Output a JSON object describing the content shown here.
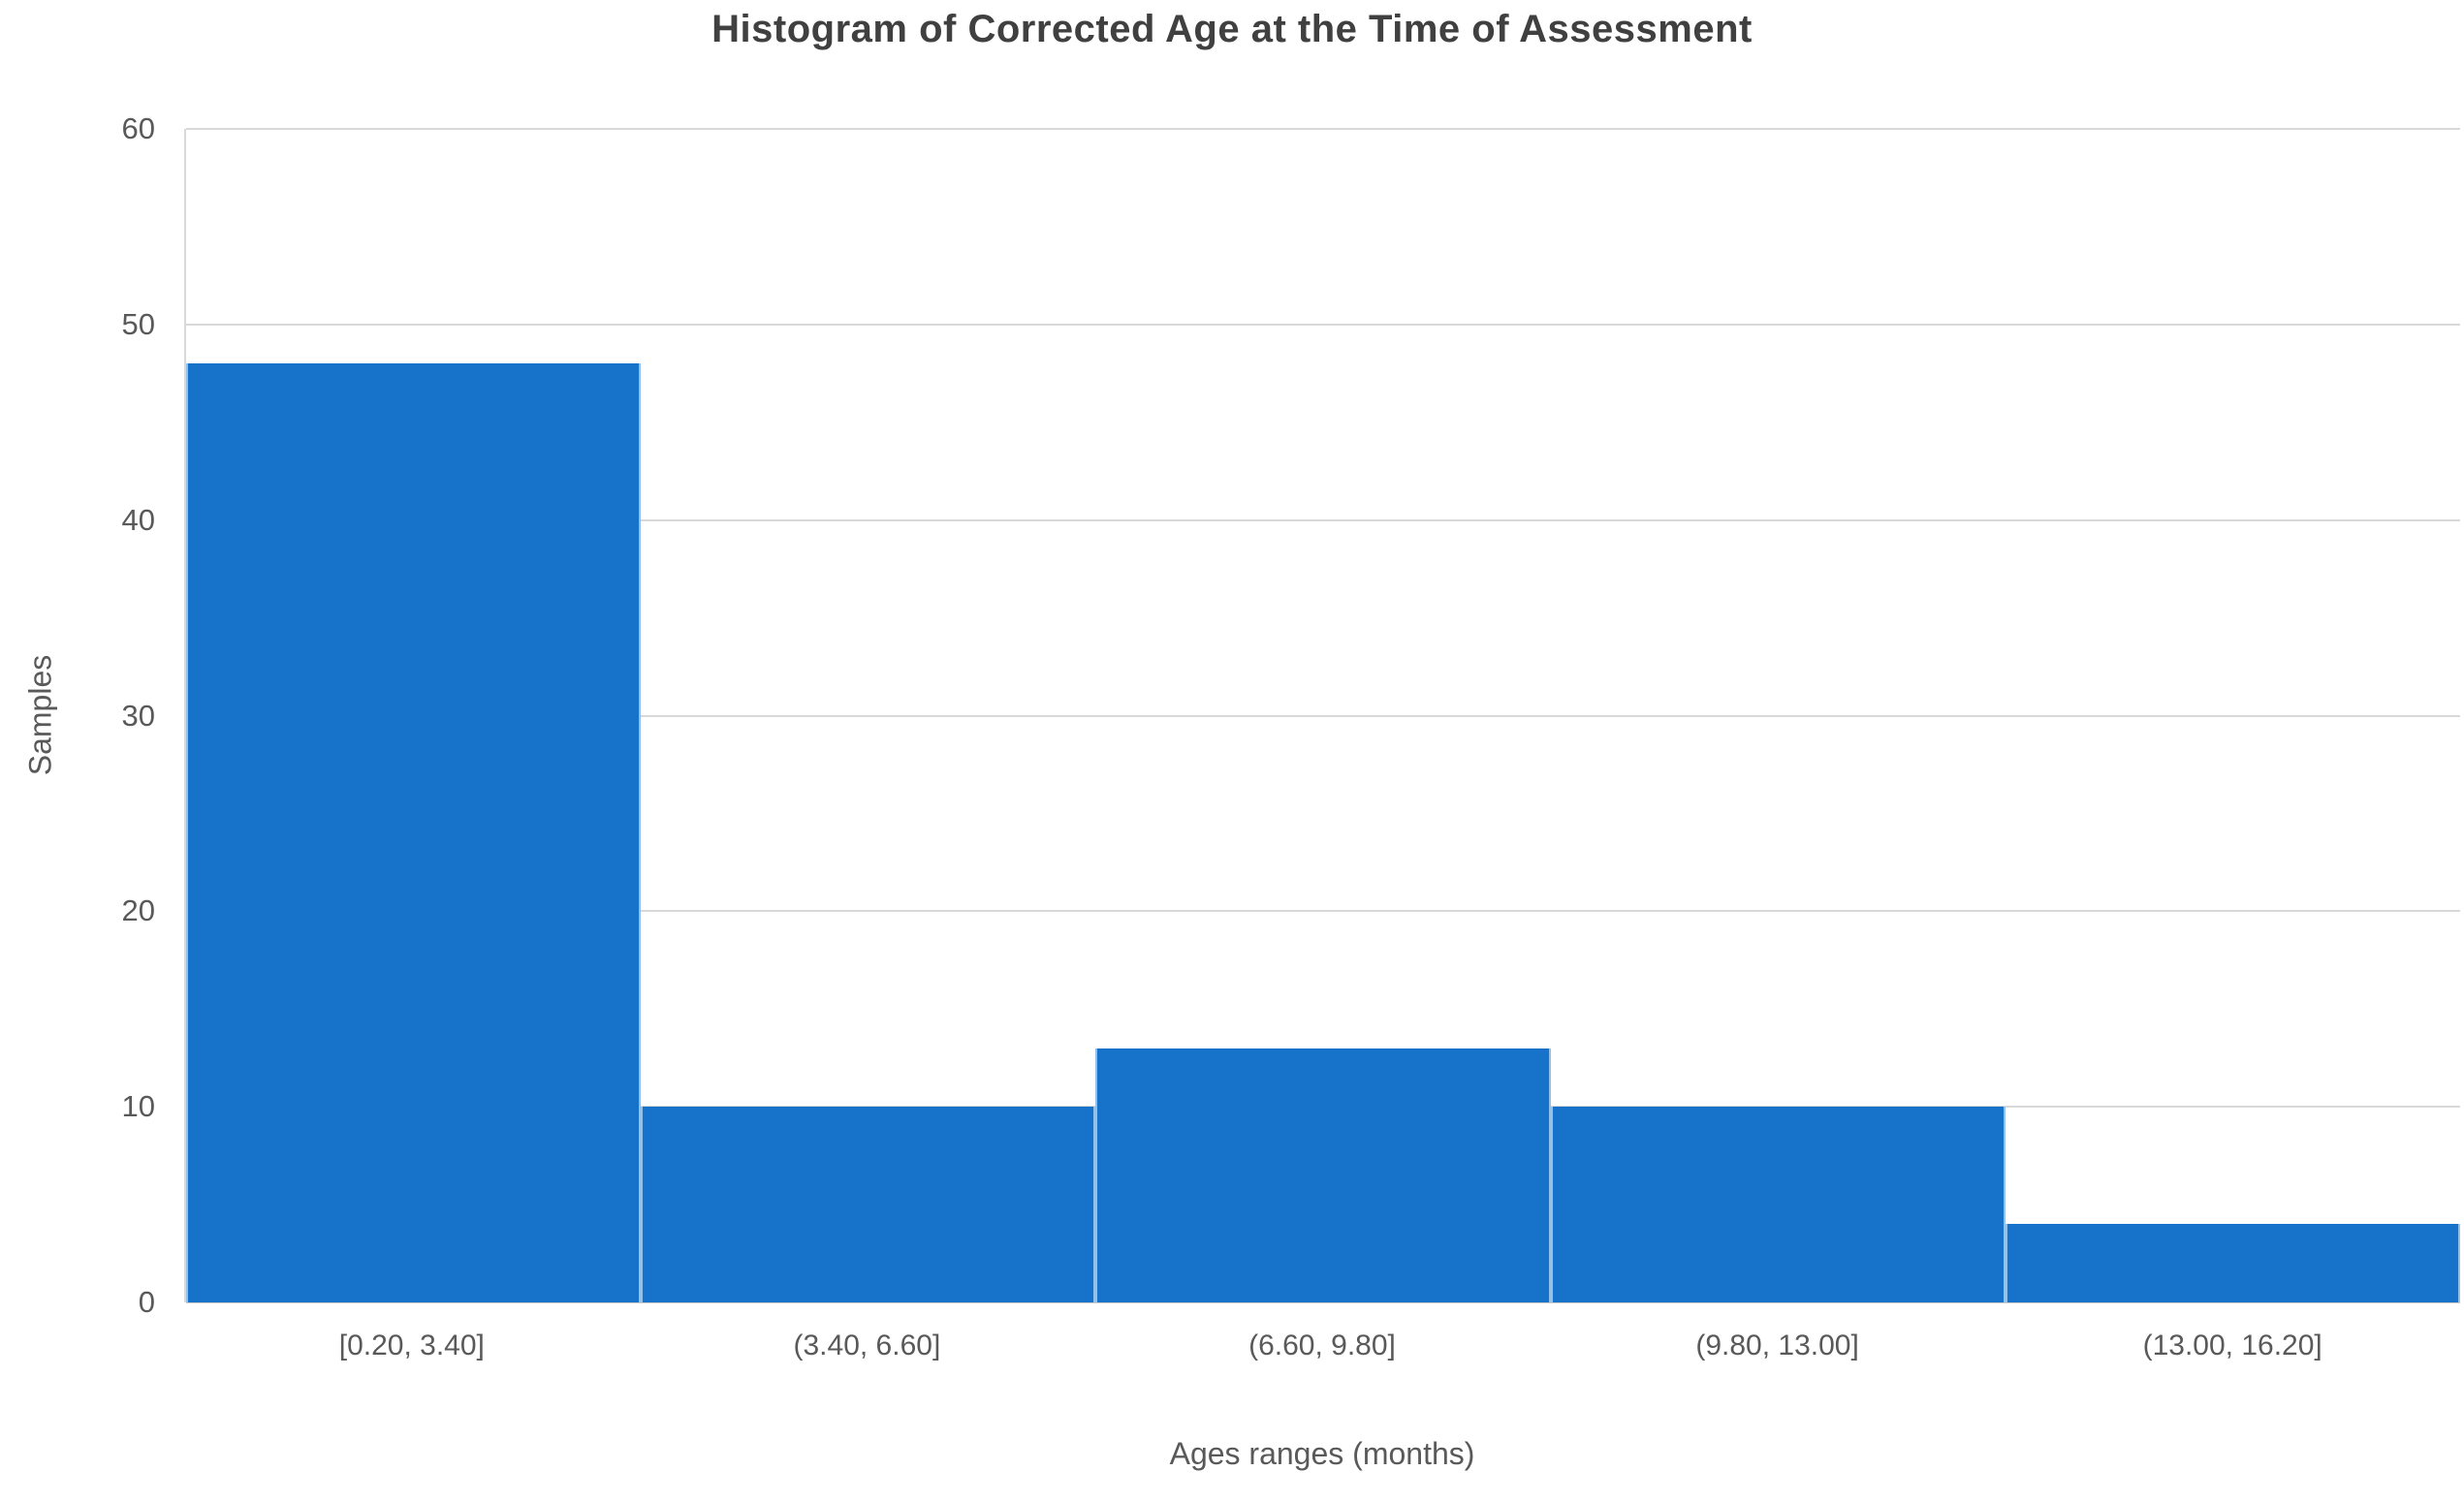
{
  "chart_data": {
    "type": "bar",
    "subtype": "histogram",
    "title": "Histogram of Corrected Age at the Time of Assessment",
    "xlabel": "Ages ranges (months)",
    "ylabel": "Samples",
    "categories": [
      "[0.20, 3.40]",
      "(3.40, 6.60]",
      "(6.60, 9.80]",
      "(9.80, 13.00]",
      "(13.00, 16.20]"
    ],
    "values": [
      48,
      10,
      13,
      10,
      4
    ],
    "ylim": [
      0,
      60
    ],
    "ytick_step": 10,
    "yticks": [
      0,
      10,
      20,
      30,
      40,
      50,
      60
    ],
    "grid": "horizontal",
    "legend": "none",
    "bar_gap": 0,
    "colors": {
      "bar": "#1673C9",
      "bar_divider": "rgba(255,255,255,0.55)",
      "gridline": "#D9D9D9",
      "axis_line": "#C6C6C6",
      "tick_text": "#595959",
      "title_text": "#404040",
      "background": "#FFFFFF"
    }
  }
}
